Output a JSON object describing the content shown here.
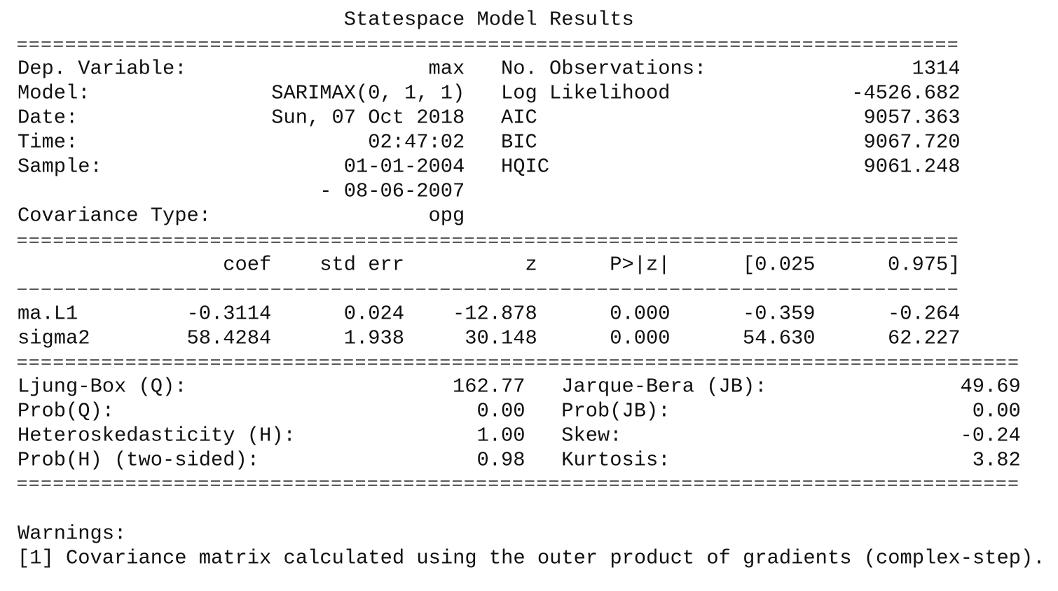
{
  "title": "Statespace Model Results",
  "info": {
    "rows": [
      [
        "Dep. Variable:",
        "max",
        "No. Observations:",
        "1314"
      ],
      [
        "Model:",
        "SARIMAX(0, 1, 1)",
        "Log Likelihood",
        "-4526.682"
      ],
      [
        "Date:",
        "Sun, 07 Oct 2018",
        "AIC",
        "9057.363"
      ],
      [
        "Time:",
        "02:47:02",
        "BIC",
        "9067.720"
      ],
      [
        "Sample:",
        "01-01-2004",
        "HQIC",
        "9061.248"
      ],
      [
        null,
        "- 08-06-2007"
      ],
      [
        "Covariance Type:",
        "opg"
      ]
    ]
  },
  "coef_table": {
    "header": [
      null,
      "coef",
      "std err",
      "z",
      "P>|z|",
      "[0.025",
      "0.975]"
    ],
    "rows": [
      [
        "ma.L1",
        "-0.3114",
        "0.024",
        "-12.878",
        "0.000",
        "-0.359",
        "-0.264"
      ],
      [
        "sigma2",
        "58.4284",
        "1.938",
        "30.148",
        "0.000",
        "54.630",
        "62.227"
      ]
    ]
  },
  "diagnostics": {
    "rows": [
      [
        "Ljung-Box (Q):",
        "162.77",
        "Jarque-Bera (JB):",
        "49.69"
      ],
      [
        "Prob(Q):",
        "0.00",
        "Prob(JB):",
        "0.00"
      ],
      [
        "Heteroskedasticity (H):",
        "1.00",
        "Skew:",
        "-0.24"
      ],
      [
        "Prob(H) (two-sided):",
        "0.98",
        "Kurtosis:",
        "3.82"
      ]
    ]
  },
  "warnings": {
    "title": "Warnings:",
    "items": [
      "[1] Covariance matrix calculated using the outer product of gradients (complex-step)."
    ]
  }
}
